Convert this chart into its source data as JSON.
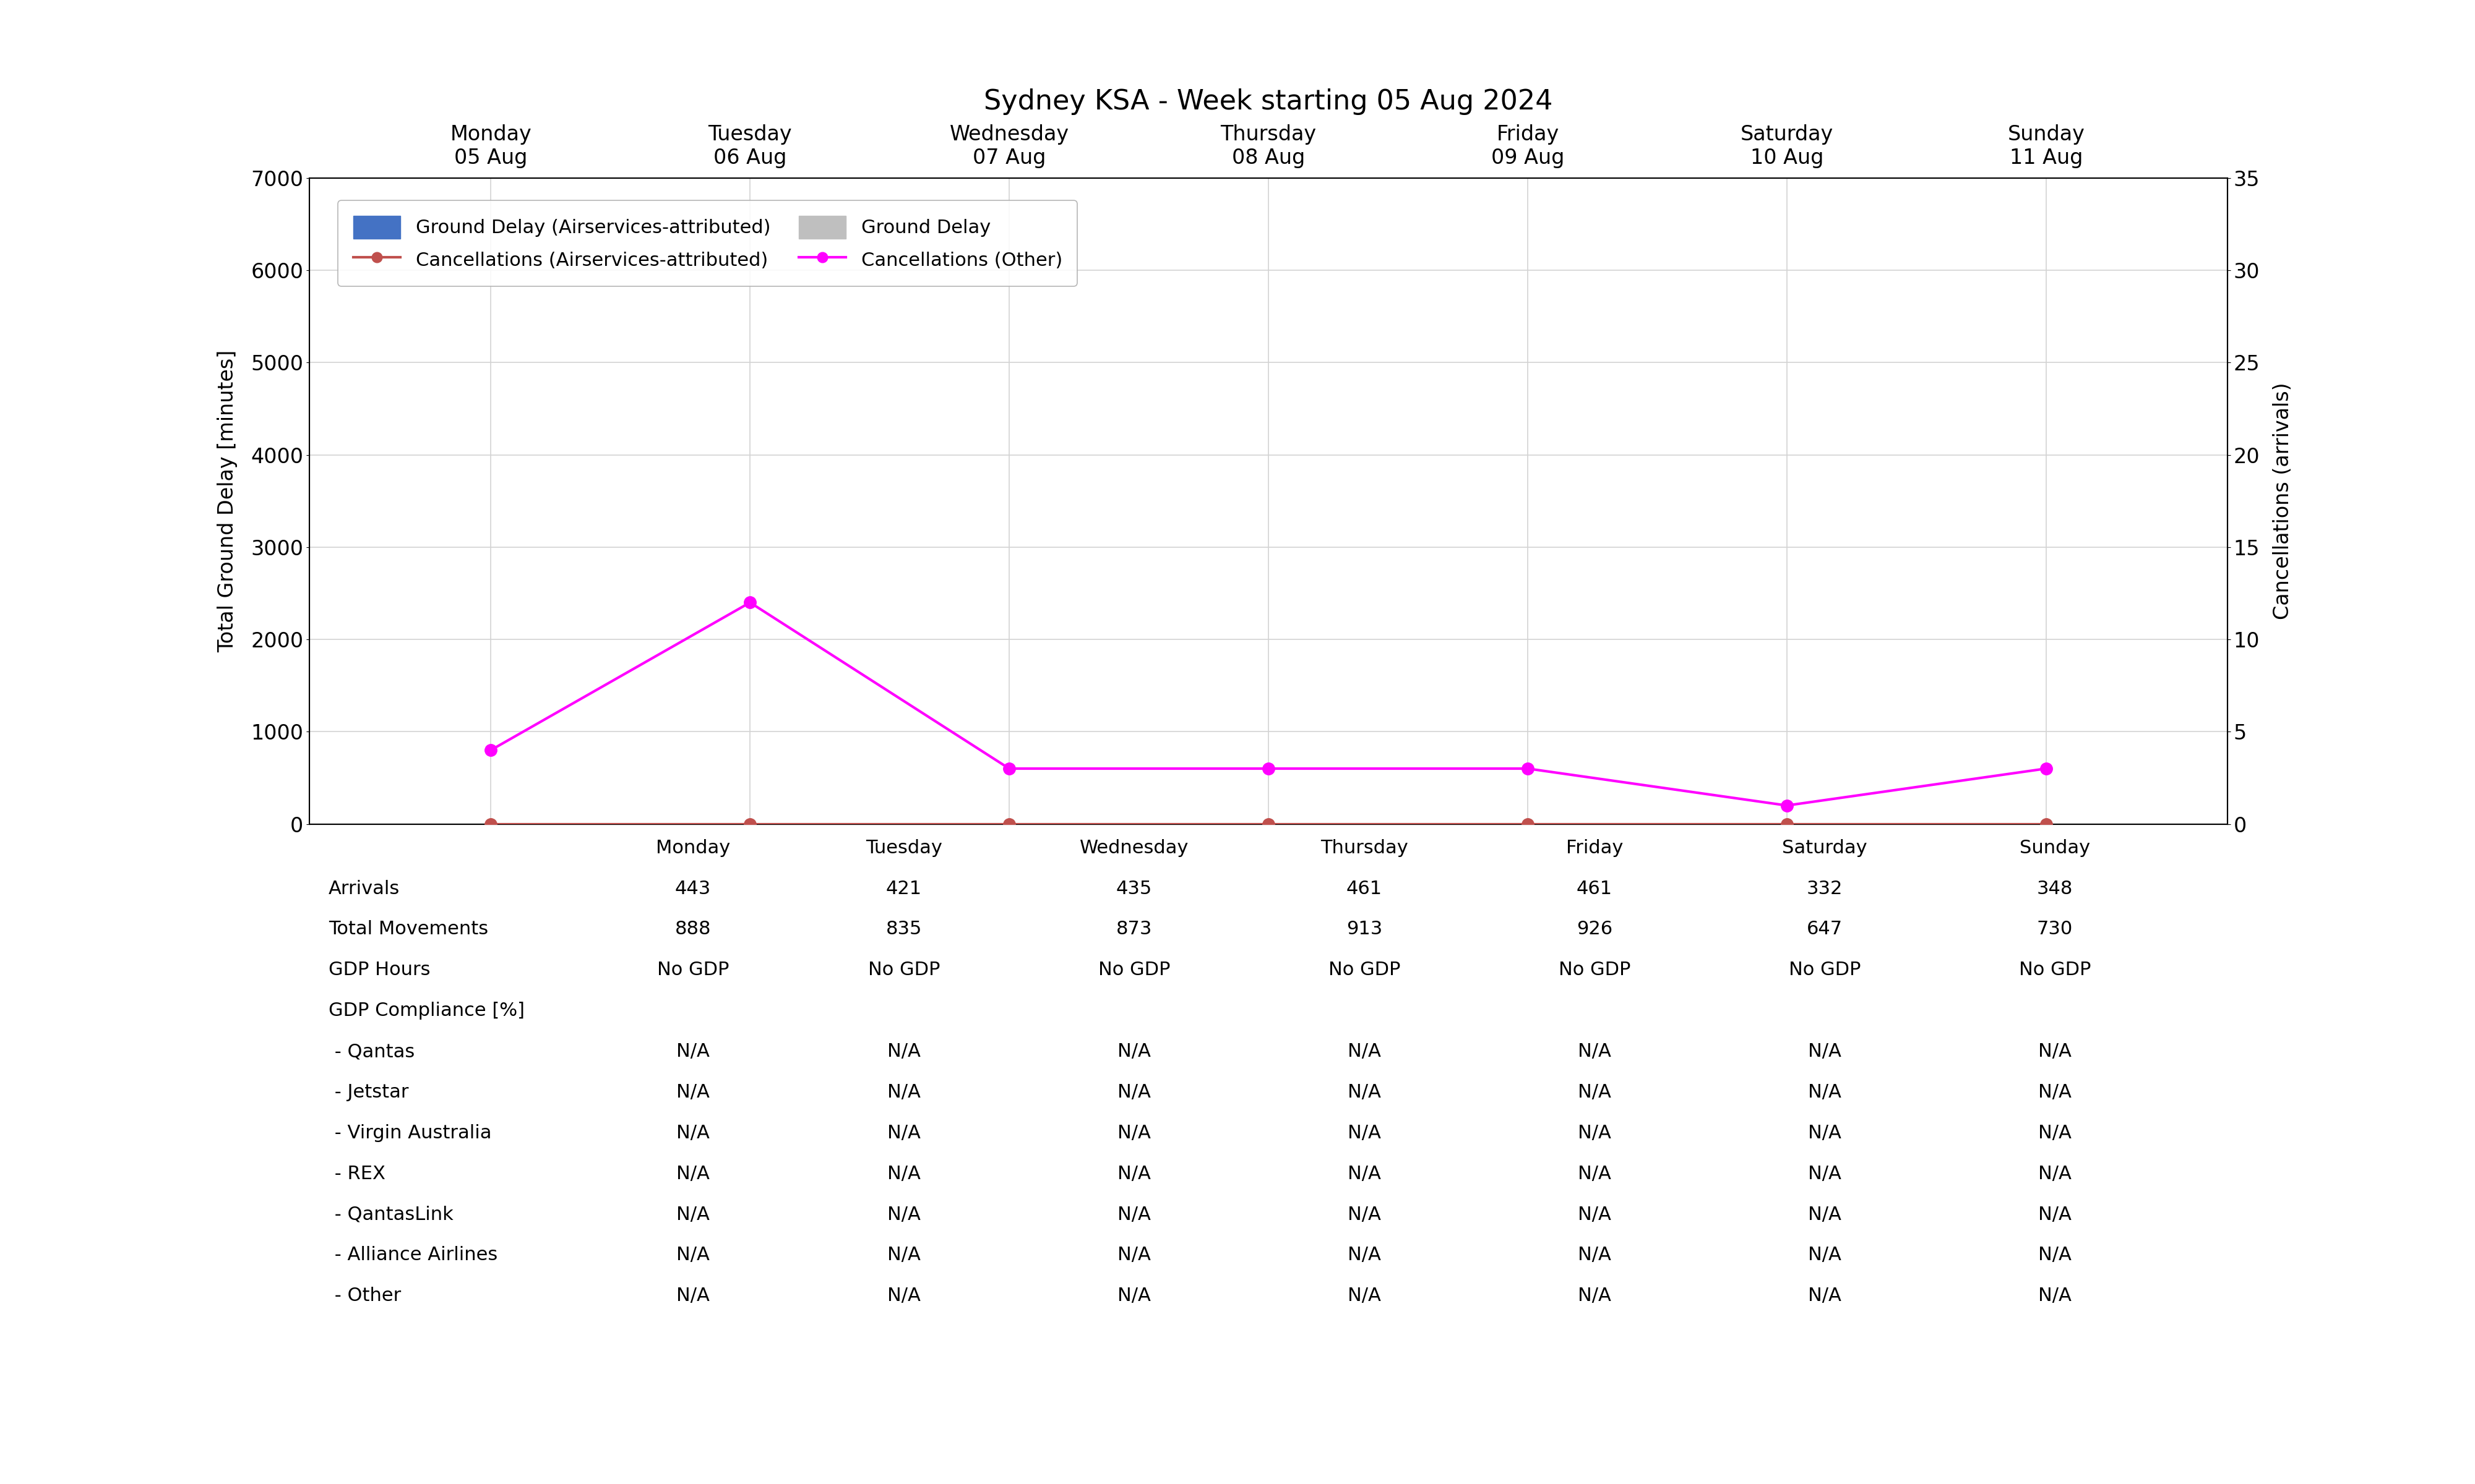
{
  "title": "Sydney KSA - Week starting 05 Aug 2024",
  "days": [
    "Monday\n05 Aug",
    "Tuesday\n06 Aug",
    "Wednesday\n07 Aug",
    "Thursday\n08 Aug",
    "Friday\n09 Aug",
    "Saturday\n10 Aug",
    "Sunday\n11 Aug"
  ],
  "x_values": [
    1,
    2,
    3,
    4,
    5,
    6,
    7
  ],
  "cancellations_airservices": [
    0,
    0,
    0,
    0,
    0,
    0,
    0
  ],
  "cancellations_other": [
    4,
    12,
    3,
    3,
    3,
    1,
    3
  ],
  "ground_delay_airservices": [
    0,
    0,
    0,
    0,
    0,
    0,
    0
  ],
  "ground_delay_total": [
    0,
    0,
    0,
    0,
    0,
    0,
    0
  ],
  "left_ylim": [
    0,
    7000
  ],
  "left_yticks": [
    0,
    1000,
    2000,
    3000,
    4000,
    5000,
    6000,
    7000
  ],
  "right_ylim": [
    0,
    35
  ],
  "right_yticks": [
    0,
    5,
    10,
    15,
    20,
    25,
    30,
    35
  ],
  "color_blue": "#4472C4",
  "color_gray": "#BFBFBF",
  "color_orange": "#C0504D",
  "color_magenta": "#FF00FF",
  "table_headers": [
    "Monday",
    "Tuesday",
    "Wednesday",
    "Thursday",
    "Friday",
    "Saturday",
    "Sunday"
  ],
  "table_row_labels": [
    "Arrivals",
    "Total Movements",
    "GDP Hours",
    "GDP Compliance [%]",
    " - Qantas",
    " - Jetstar",
    " - Virgin Australia",
    " - REX",
    " - QantasLink",
    " - Alliance Airlines",
    " - Other"
  ],
  "table_data": [
    [
      "443",
      "421",
      "435",
      "461",
      "461",
      "332",
      "348"
    ],
    [
      "888",
      "835",
      "873",
      "913",
      "926",
      "647",
      "730"
    ],
    [
      "No GDP",
      "No GDP",
      "No GDP",
      "No GDP",
      "No GDP",
      "No GDP",
      "No GDP"
    ],
    [
      "",
      "",
      "",
      "",
      "",
      "",
      ""
    ],
    [
      "N/A",
      "N/A",
      "N/A",
      "N/A",
      "N/A",
      "N/A",
      "N/A"
    ],
    [
      "N/A",
      "N/A",
      "N/A",
      "N/A",
      "N/A",
      "N/A",
      "N/A"
    ],
    [
      "N/A",
      "N/A",
      "N/A",
      "N/A",
      "N/A",
      "N/A",
      "N/A"
    ],
    [
      "N/A",
      "N/A",
      "N/A",
      "N/A",
      "N/A",
      "N/A",
      "N/A"
    ],
    [
      "N/A",
      "N/A",
      "N/A",
      "N/A",
      "N/A",
      "N/A",
      "N/A"
    ],
    [
      "N/A",
      "N/A",
      "N/A",
      "N/A",
      "N/A",
      "N/A",
      "N/A"
    ],
    [
      "N/A",
      "N/A",
      "N/A",
      "N/A",
      "N/A",
      "N/A",
      "N/A"
    ]
  ],
  "legend_labels": [
    "Ground Delay (Airservices-attributed)",
    "Ground Delay",
    "Cancellations (Airservices-attributed)",
    "Cancellations (Other)"
  ],
  "title_fontsize": 32,
  "axis_label_fontsize": 24,
  "tick_fontsize": 24,
  "legend_fontsize": 22,
  "table_fontsize": 22
}
